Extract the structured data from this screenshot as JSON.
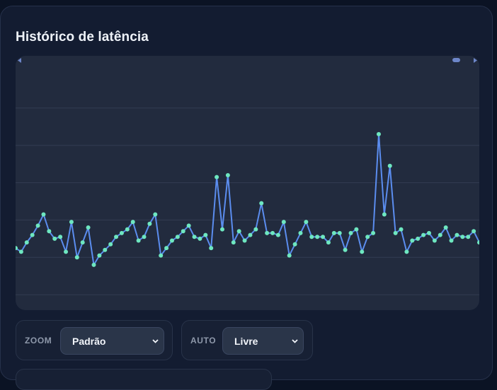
{
  "panel": {
    "title": "Histórico de latência"
  },
  "controls": {
    "zoom": {
      "label": "ZOOM",
      "value": "Padrão"
    },
    "auto": {
      "label": "AUTO",
      "value": "Livre"
    }
  },
  "colors": {
    "line": "#5b8def",
    "point": "#6ee7c0",
    "grid": "#323c52",
    "chart_bg": "#222b3e"
  },
  "icons": {
    "scroll_left": "chevron-left-icon",
    "scroll_right": "chevron-right-icon",
    "select_chevron": "chevron-down-icon"
  },
  "chart_data": {
    "type": "line",
    "title": "",
    "xlabel": "",
    "ylabel": "",
    "grid": true,
    "ylim": [
      0,
      7
    ],
    "y": [
      2.25,
      2.15,
      2.4,
      2.6,
      2.85,
      3.15,
      2.7,
      2.5,
      2.55,
      2.15,
      2.95,
      2.0,
      2.4,
      2.8,
      1.8,
      2.05,
      2.2,
      2.35,
      2.55,
      2.65,
      2.75,
      2.95,
      2.45,
      2.55,
      2.9,
      3.15,
      2.05,
      2.25,
      2.45,
      2.55,
      2.7,
      2.85,
      2.55,
      2.5,
      2.6,
      2.25,
      4.15,
      2.75,
      4.2,
      2.4,
      2.7,
      2.45,
      2.6,
      2.75,
      3.45,
      2.65,
      2.65,
      2.6,
      2.95,
      2.05,
      2.35,
      2.65,
      2.95,
      2.55,
      2.55,
      2.55,
      2.4,
      2.65,
      2.65,
      2.2,
      2.65,
      2.75,
      2.15,
      2.55,
      2.65,
      5.3,
      3.15,
      4.45,
      2.65,
      2.75,
      2.15,
      2.45,
      2.5,
      2.6,
      2.65,
      2.45,
      2.6,
      2.8,
      2.45,
      2.6,
      2.55,
      2.55,
      2.7,
      2.4
    ]
  }
}
